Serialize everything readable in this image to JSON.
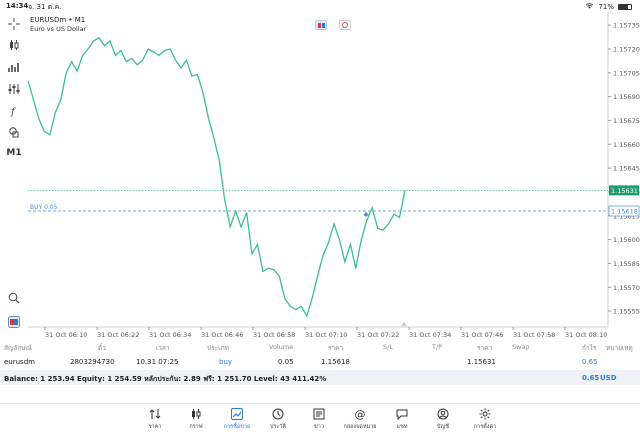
{
  "status_bar": {
    "time": "14:34",
    "date": "จ. 31 ต.ค.",
    "battery": "71%",
    "battery_level": 0.71
  },
  "toolbar": {
    "timeframe": "M1"
  },
  "chart": {
    "symbol_title": "EURUSDm • M1",
    "symbol_desc": "Euro vs US Dollar",
    "current_price": "1.15631",
    "buy_label": "BUY 0.05",
    "buy_price": "1.15618",
    "colors": {
      "line": "#3cbf8c",
      "price_tag": "#1f9c6e",
      "buy_line": "#4a8fd8",
      "grid": "#e3e3e3"
    }
  },
  "chart_data": {
    "type": "line",
    "y_ticks": [
      "1.15735",
      "1.15720",
      "1.15705",
      "1.15690",
      "1.15675",
      "1.15660",
      "1.15645",
      "1.15630",
      "1.15615",
      "1.15600",
      "1.15585",
      "1.15570",
      "1.15555"
    ],
    "x_ticks": [
      "31 Oct 06:10",
      "31 Oct 06:22",
      "31 Oct 06:34",
      "31 Oct 06:46",
      "31 Oct 06:58",
      "31 Oct 07:10",
      "31 Oct 07:22",
      "31 Oct 07:34",
      "31 Oct 07:46",
      "31 Oct 07:58",
      "31 Oct 08:10"
    ],
    "ylim": [
      1.15545,
      1.15742
    ],
    "series": [
      {
        "values": [
          1.157,
          1.15688,
          1.15676,
          1.15668,
          1.15666,
          1.1568,
          1.15688,
          1.15705,
          1.15712,
          1.15706,
          1.15716,
          1.1572,
          1.15725,
          1.15727,
          1.15722,
          1.15725,
          1.15716,
          1.15719,
          1.15712,
          1.15714,
          1.1571,
          1.15713,
          1.1572,
          1.15718,
          1.15716,
          1.15719,
          1.1572,
          1.15713,
          1.15708,
          1.15713,
          1.15703,
          1.15704,
          1.15693,
          1.15677,
          1.15664,
          1.1565,
          1.15625,
          1.15608,
          1.15618,
          1.15608,
          1.15617,
          1.15591,
          1.15597,
          1.1558,
          1.15582,
          1.15581,
          1.15577,
          1.15563,
          1.15558,
          1.15556,
          1.15558,
          1.15552,
          1.15563,
          1.15577,
          1.1559,
          1.15598,
          1.1561,
          1.156,
          1.15586,
          1.15597,
          1.15582,
          1.156,
          1.15612,
          1.1562,
          1.15607,
          1.15606,
          1.1561,
          1.15616,
          1.15614,
          1.15631
        ]
      }
    ]
  },
  "table": {
    "headers": [
      "สัญลักษณ์",
      "ตั๋ว",
      "เวลา",
      "ประเภท",
      "Volume",
      "ราคา",
      "S/L",
      "T/P",
      "ราคา",
      "Swap",
      "กำไร",
      "หมายเหตุ"
    ],
    "row": {
      "symbol": "eurusdm",
      "ticket": "2803294730",
      "time": "10.31 07:25",
      "type": "buy",
      "volume": "0.05",
      "open_price": "1.15618",
      "price": "1.15631",
      "profit": "0.65"
    }
  },
  "balance": {
    "text": "Balance: 1 253.94 Equity: 1 254.59 หลักประกัน: 2.89 ฟรี: 1 251.70 Level: 43 411.42%",
    "profit": "0.65",
    "currency": "USD"
  },
  "tabs": [
    {
      "label": "ราคา",
      "icon": "quotes-icon"
    },
    {
      "label": "กราฟ",
      "icon": "chart-icon"
    },
    {
      "label": "การซื้อขาย",
      "icon": "trade-icon",
      "active": true
    },
    {
      "label": "ประวัติ",
      "icon": "history-icon"
    },
    {
      "label": "ข่าว",
      "icon": "news-icon"
    },
    {
      "label": "กล่องจดหมาย",
      "icon": "mailbox-icon"
    },
    {
      "label": "แชท",
      "icon": "chat-icon"
    },
    {
      "label": "บัญชี",
      "icon": "account-icon"
    },
    {
      "label": "การตั้งค่า",
      "icon": "settings-icon"
    }
  ]
}
